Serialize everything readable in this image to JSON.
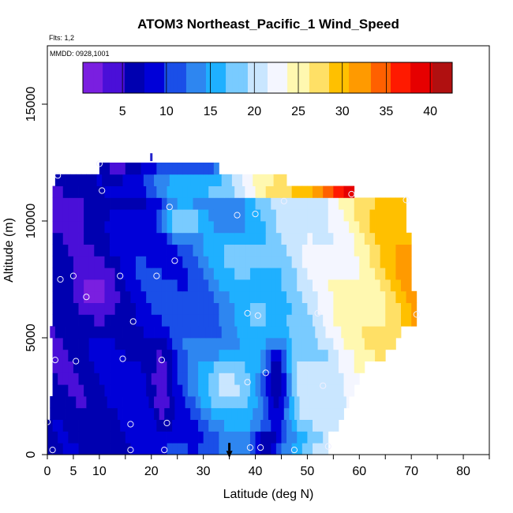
{
  "chart_data": {
    "type": "heatmap",
    "title": "ATOM3 Northeast_Pacific_1 Wind_Speed",
    "annotations": [
      "Flts: 1,2",
      "MMDD: 0928,1001"
    ],
    "xlabel": "Latitude (deg N)",
    "ylabel": "Altitude (m)",
    "xlim": [
      0,
      85
    ],
    "ylim": [
      0,
      17500
    ],
    "x_ticks": [
      0,
      5,
      10,
      20,
      30,
      40,
      50,
      60,
      70,
      80
    ],
    "y_ticks": [
      0,
      5000,
      10000,
      15000
    ],
    "grid": false,
    "colorbar": {
      "placement": "top",
      "range": [
        0.5,
        42.5
      ],
      "ticks": [
        5,
        10,
        15,
        20,
        25,
        30,
        35,
        40
      ],
      "colors": [
        "#7a1fe0",
        "#4a0fd8",
        "#0000b0",
        "#0000d8",
        "#1a4fe8",
        "#2e86f0",
        "#1fb0ff",
        "#79cbff",
        "#c9e6ff",
        "#f4f6ff",
        "#fff8b0",
        "#ffe066",
        "#ffc000",
        "#ff9a00",
        "#ff6000",
        "#ff1a00",
        "#e60000",
        "#b01010"
      ]
    },
    "layers": [
      {
        "y0": 0,
        "y1": 500,
        "x0": 0,
        "x1": 54,
        "peak": 20
      },
      {
        "y0": 500,
        "y1": 1000,
        "x0": 0,
        "x1": 54,
        "peak": 18
      },
      {
        "y0": 1000,
        "y1": 1500,
        "x0": 0,
        "x1": 56,
        "peak": 20
      },
      {
        "y0": 1500,
        "y1": 2000,
        "x0": 0.5,
        "x1": 57,
        "peak": 22
      },
      {
        "y0": 2000,
        "y1": 2500,
        "x0": 0.5,
        "x1": 58,
        "peak": 23
      },
      {
        "y0": 2500,
        "y1": 3000,
        "x0": 1,
        "x1": 59,
        "peak": 24
      },
      {
        "y0": 3000,
        "y1": 3500,
        "x0": 1,
        "x1": 60,
        "peak": 24
      },
      {
        "y0": 3500,
        "y1": 4000,
        "x0": 1,
        "x1": 61,
        "peak": 25
      },
      {
        "y0": 4000,
        "y1": 4500,
        "x0": 1,
        "x1": 65,
        "peak": 26
      },
      {
        "y0": 4500,
        "y1": 5000,
        "x0": 1,
        "x1": 67,
        "peak": 28
      },
      {
        "y0": 5000,
        "y1": 5500,
        "x0": 0.5,
        "x1": 68,
        "peak": 29
      },
      {
        "y0": 5500,
        "y1": 6000,
        "x0": 1,
        "x1": 71,
        "peak": 31
      },
      {
        "y0": 6000,
        "y1": 6500,
        "x0": 1,
        "x1": 71,
        "peak": 31
      },
      {
        "y0": 6500,
        "y1": 7000,
        "x0": 1,
        "x1": 71,
        "peak": 31
      },
      {
        "y0": 7000,
        "y1": 7500,
        "x0": 1,
        "x1": 70,
        "peak": 31
      },
      {
        "y0": 7500,
        "y1": 8000,
        "x0": 1,
        "x1": 70,
        "peak": 31
      },
      {
        "y0": 8000,
        "y1": 8500,
        "x0": 1,
        "x1": 70,
        "peak": 31
      },
      {
        "y0": 8500,
        "y1": 9000,
        "x0": 1,
        "x1": 70,
        "peak": 31
      },
      {
        "y0": 9000,
        "y1": 9500,
        "x0": 1,
        "x1": 70,
        "peak": 31
      },
      {
        "y0": 9500,
        "y1": 10000,
        "x0": 1,
        "x1": 69,
        "peak": 31
      },
      {
        "y0": 10000,
        "y1": 10500,
        "x0": 1,
        "x1": 69,
        "peak": 31
      },
      {
        "y0": 10500,
        "y1": 11000,
        "x0": 1,
        "x1": 69,
        "peak": 31
      },
      {
        "y0": 11000,
        "y1": 11500,
        "x0": 1,
        "x1": 59,
        "peak": 39
      },
      {
        "y0": 11500,
        "y1": 12000,
        "x0": 1.5,
        "x1": 46,
        "peak": 27
      },
      {
        "y0": 12000,
        "y1": 12500,
        "x0": 10,
        "x1": 33,
        "peak": 14
      }
    ],
    "features": [
      {
        "x": 9,
        "y": 7000,
        "v": 2,
        "sx": 4,
        "sy": 1400
      },
      {
        "x": 22,
        "y": 3000,
        "v": 3,
        "sx": 2,
        "sy": 2000
      },
      {
        "x": 35,
        "y": 3000,
        "v": 20,
        "sx": 5,
        "sy": 1300
      },
      {
        "x": 44,
        "y": 3000,
        "v": 5,
        "sx": 2.5,
        "sy": 2000
      },
      {
        "x": 26,
        "y": 10000,
        "v": 20,
        "sx": 3.5,
        "sy": 700
      },
      {
        "x": 38,
        "y": 8500,
        "v": 18,
        "sx": 6,
        "sy": 900
      },
      {
        "x": 6,
        "y": 10500,
        "v": 5,
        "sx": 6,
        "sy": 1200
      },
      {
        "x": 42,
        "y": 500,
        "v": 4,
        "sx": 3,
        "sy": 500
      }
    ],
    "observation_points": [
      {
        "x": 1,
        "y": 200
      },
      {
        "x": 0,
        "y": 1400
      },
      {
        "x": 16,
        "y": 200
      },
      {
        "x": 22.5,
        "y": 200
      },
      {
        "x": 16,
        "y": 1300
      },
      {
        "x": 23,
        "y": 1350
      },
      {
        "x": 39,
        "y": 300
      },
      {
        "x": 41,
        "y": 300
      },
      {
        "x": 47.5,
        "y": 200
      },
      {
        "x": 54,
        "y": 350
      },
      {
        "x": 1.5,
        "y": 4050
      },
      {
        "x": 5.5,
        "y": 4000
      },
      {
        "x": 14.5,
        "y": 4100
      },
      {
        "x": 22,
        "y": 4050
      },
      {
        "x": 38.5,
        "y": 3100
      },
      {
        "x": 42,
        "y": 3500
      },
      {
        "x": 53,
        "y": 2950
      },
      {
        "x": 16.5,
        "y": 5700
      },
      {
        "x": 38.5,
        "y": 6050
      },
      {
        "x": 40.5,
        "y": 5950
      },
      {
        "x": 7.5,
        "y": 6750
      },
      {
        "x": 2.5,
        "y": 7500
      },
      {
        "x": 5,
        "y": 7650
      },
      {
        "x": 14,
        "y": 7650
      },
      {
        "x": 21,
        "y": 7650
      },
      {
        "x": 24.5,
        "y": 8300
      },
      {
        "x": 23.5,
        "y": 10600
      },
      {
        "x": 36.5,
        "y": 10250
      },
      {
        "x": 40,
        "y": 10300
      },
      {
        "x": 45.5,
        "y": 10850
      },
      {
        "x": 10.5,
        "y": 11300
      },
      {
        "x": 2,
        "y": 11950
      },
      {
        "x": 10,
        "y": 12450
      },
      {
        "x": 58.5,
        "y": 11150
      },
      {
        "x": 69,
        "y": 10900
      },
      {
        "x": 71,
        "y": 6000
      },
      {
        "x": 52,
        "y": 6050
      }
    ],
    "flight_markers": [
      {
        "x": 20,
        "y": 12900,
        "color": "#2222cc"
      },
      {
        "x": 35,
        "y": 500,
        "color": "#000000"
      }
    ]
  }
}
